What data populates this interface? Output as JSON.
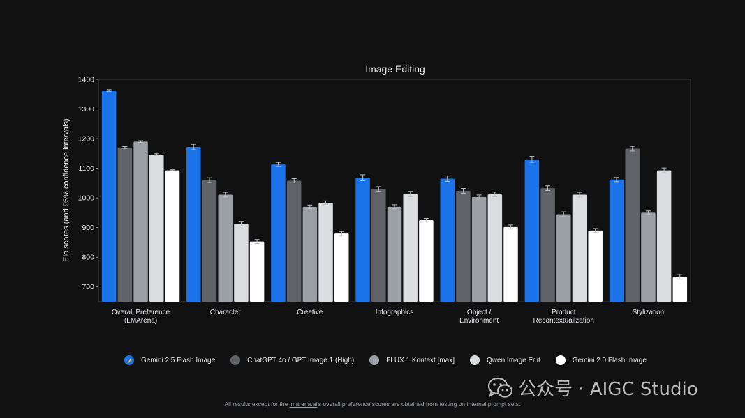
{
  "chart_data": {
    "type": "bar",
    "title": "Image Editing",
    "ylabel": "Elo scores (and 95% confidence intervals)",
    "xlabel": "",
    "ylim": [
      650,
      1400
    ],
    "yticks": [
      700,
      800,
      900,
      1000,
      1100,
      1200,
      1300,
      1400
    ],
    "categories": [
      [
        "Overall Preference",
        "(LMArena)"
      ],
      [
        "Character"
      ],
      [
        "Creative"
      ],
      [
        "Infographics"
      ],
      [
        "Object /",
        "Environment"
      ],
      [
        "Product",
        "Recontextualization"
      ],
      [
        "Stylization"
      ]
    ],
    "series": [
      {
        "name": "Gemini 2.5 Flash Image",
        "color": "#1a73e8",
        "values": [
          1362,
          1172,
          1113,
          1068,
          1065,
          1130,
          1062
        ],
        "err": [
          3,
          9,
          7,
          10,
          9,
          10,
          7
        ]
      },
      {
        "name": "ChatGPT 4o / GPT Image 1 (High)",
        "color": "#5f6368",
        "values": [
          1170,
          1060,
          1058,
          1030,
          1024,
          1033,
          1166
        ],
        "err": [
          3,
          8,
          7,
          8,
          8,
          8,
          8
        ]
      },
      {
        "name": "FLUX.1 Kontext [max]",
        "color": "#9aa0a6",
        "values": [
          1190,
          1011,
          970,
          970,
          1003,
          945,
          950
        ],
        "err": [
          3,
          8,
          6,
          7,
          7,
          8,
          6
        ]
      },
      {
        "name": "Qwen Image Edit",
        "color": "#dadce0",
        "values": [
          1146,
          913,
          984,
          1013,
          1012,
          1011,
          1093
        ],
        "err": [
          3,
          8,
          6,
          9,
          8,
          8,
          8
        ]
      },
      {
        "name": "Gemini 2.0 Flash Image",
        "color": "#ffffff",
        "values": [
          1093,
          853,
          880,
          925,
          902,
          890,
          734
        ],
        "err": [
          2,
          7,
          7,
          6,
          7,
          7,
          8
        ]
      }
    ],
    "grid": false,
    "legend_position": "bottom"
  },
  "legend": {
    "items": [
      {
        "label": "Gemini 2.5 Flash Image",
        "color": "#1a73e8",
        "icon": "banana-icon"
      },
      {
        "label": "ChatGPT 4o / GPT Image 1 (High)",
        "color": "#5f6368"
      },
      {
        "label": "FLUX.1 Kontext [max]",
        "color": "#9aa0a6"
      },
      {
        "label": "Qwen Image Edit",
        "color": "#dadce0"
      },
      {
        "label": "Gemini 2.0 Flash Image",
        "color": "#ffffff"
      }
    ]
  },
  "footnote": {
    "before": "All results except for the ",
    "link": "lmarena.ai",
    "after": "'s overall preference scores are obtained from testing on internal prompt sets."
  },
  "watermark": {
    "text": "公众号 · AIGC Studio",
    "icon": "wechat-icon"
  }
}
